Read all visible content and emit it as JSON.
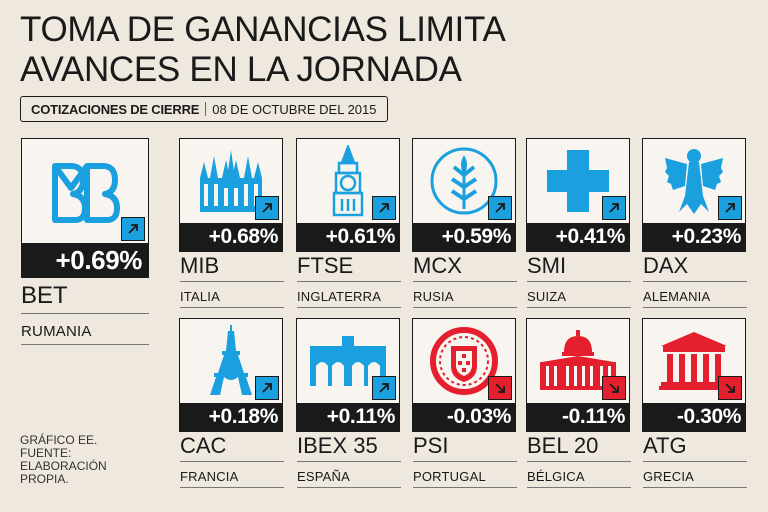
{
  "title_line1": "TOMA DE GANANCIAS LIMITA",
  "title_line2": "AVANCES EN LA JORNADA",
  "subhead": {
    "label": "COTIZACIONES DE CIERRE",
    "date": "08 DE OCTUBRE DEL 2015"
  },
  "colors": {
    "background": "#efe8df",
    "up": "#1aa0de",
    "down": "#e5202e",
    "dark": "#1a1a1a"
  },
  "bet": {
    "value": "+0.69%",
    "name": "BET",
    "country": "RUMANIA",
    "icon": "bvb-logo-icon",
    "direction": "up"
  },
  "indices": [
    {
      "value": "+0.68%",
      "name": "MIB",
      "country": "ITALIA",
      "icon": "milan-cathedral-icon",
      "direction": "up"
    },
    {
      "value": "+0.61%",
      "name": "FTSE",
      "country": "INGLATERRA",
      "icon": "big-ben-icon",
      "direction": "up"
    },
    {
      "value": "+0.59%",
      "name": "MCX",
      "country": "RUSIA",
      "icon": "moscow-exchange-logo-icon",
      "direction": "up"
    },
    {
      "value": "+0.41%",
      "name": "SMI",
      "country": "SUIZA",
      "icon": "swiss-cross-icon",
      "direction": "up"
    },
    {
      "value": "+0.23%",
      "name": "DAX",
      "country": "ALEMANIA",
      "icon": "german-eagle-icon",
      "direction": "up"
    },
    {
      "value": "+0.18%",
      "name": "CAC",
      "country": "FRANCIA",
      "icon": "eiffel-tower-icon",
      "direction": "up"
    },
    {
      "value": "+0.11%",
      "name": "IBEX 35",
      "country": "ESPAÑA",
      "icon": "puerta-de-alcala-icon",
      "direction": "up"
    },
    {
      "value": "-0.03%",
      "name": "PSI",
      "country": "PORTUGAL",
      "icon": "portugal-emblem-icon",
      "direction": "down"
    },
    {
      "value": "-0.11%",
      "name": "BEL 20",
      "country": "BÉLGICA",
      "icon": "belgian-palace-icon",
      "direction": "down"
    },
    {
      "value": "-0.30%",
      "name": "ATG",
      "country": "GRECIA",
      "icon": "greek-temple-icon",
      "direction": "down"
    }
  ],
  "credits": {
    "line1": "GRÁFICO EE.",
    "line2": "FUENTE:",
    "line3": "ELABORACIÓN",
    "line4": "PROPIA."
  }
}
